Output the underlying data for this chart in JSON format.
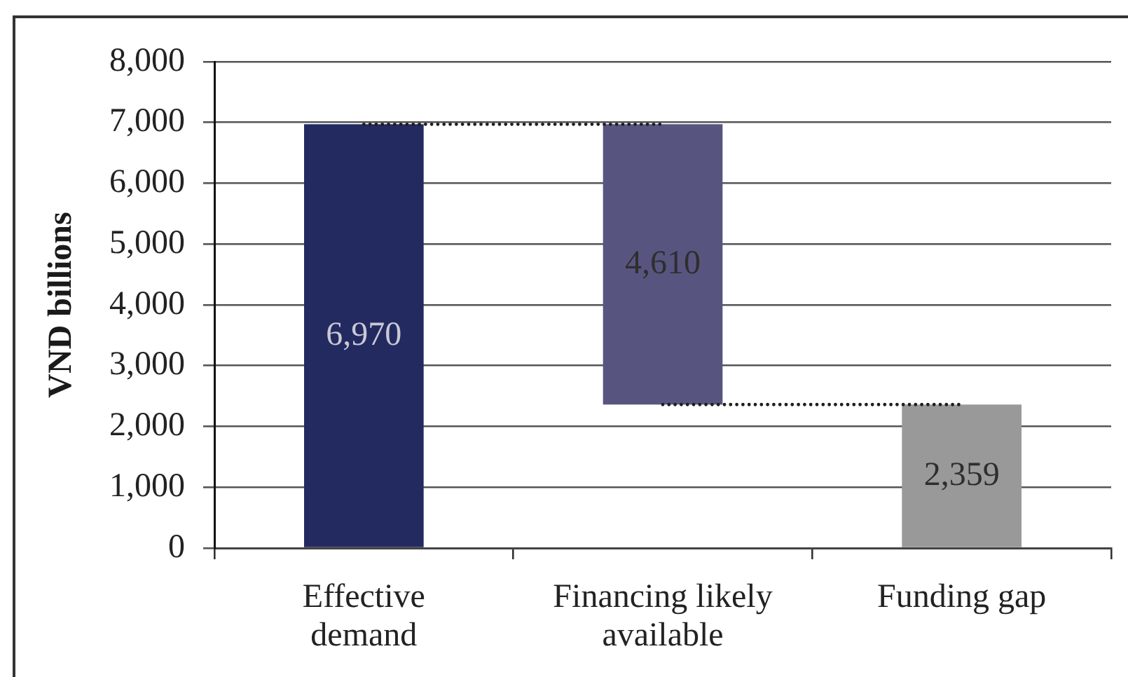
{
  "chart_data": {
    "type": "bar",
    "ylabel": "VND billions",
    "categories": [
      "Effective demand",
      "Financing likely available",
      "Funding gap"
    ],
    "series": [
      {
        "values": [
          6970,
          4610,
          2359
        ],
        "base": [
          0,
          2360,
          0
        ],
        "colors": [
          "#232a60",
          "#575580",
          "#999999"
        ],
        "value_labels": [
          "6,970",
          "4,610",
          "2,359"
        ]
      },
      {
        "type": "line",
        "values": [
          6970,
          6970,
          null
        ],
        "color": "#1e1e1e",
        "line_style": "dotted"
      },
      {
        "type": "line",
        "values": [
          null,
          2360,
          2360
        ],
        "color": "#1e1e1e",
        "line_style": "dotted"
      }
    ],
    "ylim": [
      0,
      8000
    ],
    "yticks": [
      0,
      {
        "value": 1000,
        "label": "1,000"
      },
      {
        "value": 2000,
        "label": "2,000"
      },
      {
        "value": 3000,
        "label": "3,000"
      },
      {
        "value": 4000,
        "label": "4,000"
      },
      {
        "value": 5000,
        "label": "5,000"
      },
      {
        "value": 6000,
        "label": "6,000"
      },
      {
        "value": 7000,
        "label": "7,000"
      },
      {
        "value": 8000,
        "label": "8,000"
      }
    ],
    "grid": "y"
  }
}
